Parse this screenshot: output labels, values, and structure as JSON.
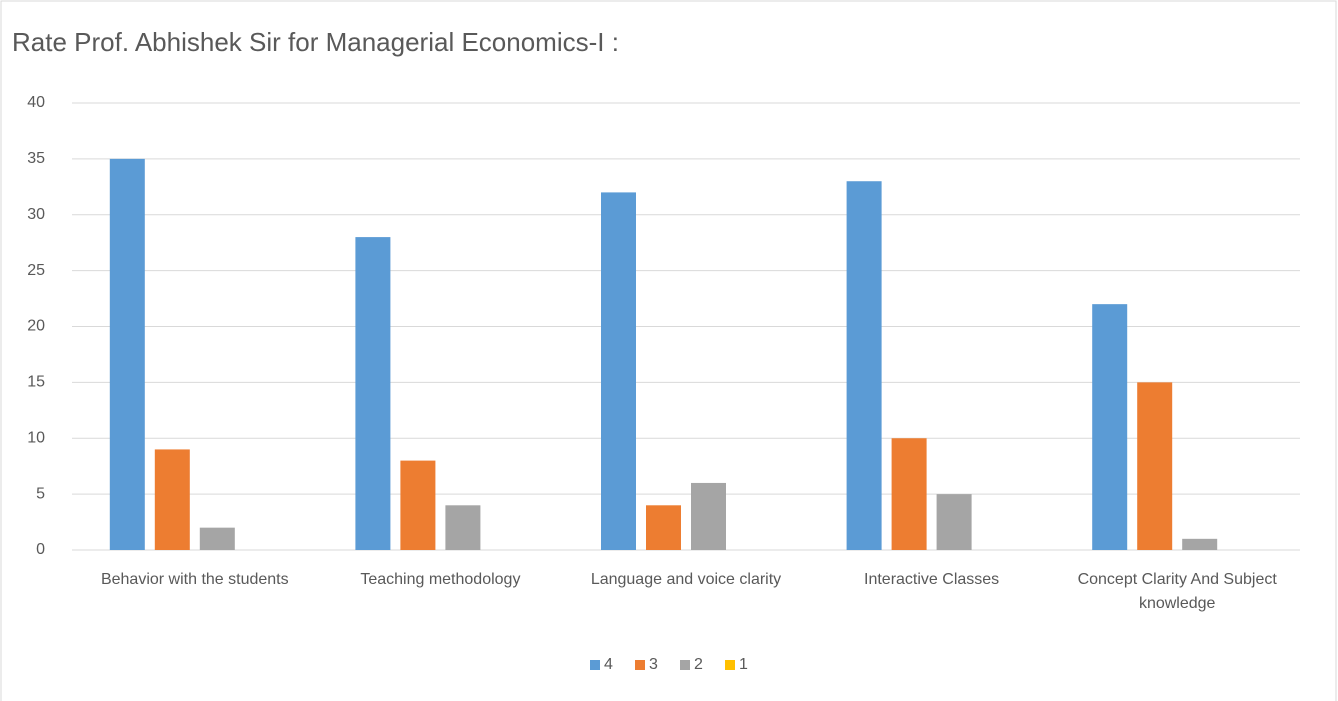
{
  "chart_data": {
    "type": "bar",
    "title": "Rate Prof. Abhishek Sir for Managerial Economics-I :",
    "categories": [
      "Behavior with the students",
      "Teaching methodology",
      "Language and voice clarity",
      "Interactive Classes",
      "Concept Clarity And Subject knowledge"
    ],
    "series": [
      {
        "name": "4",
        "color": "#5b9bd5",
        "values": [
          35,
          28,
          32,
          33,
          22
        ]
      },
      {
        "name": "3",
        "color": "#ed7d31",
        "values": [
          9,
          8,
          4,
          10,
          15
        ]
      },
      {
        "name": "2",
        "color": "#a5a5a5",
        "values": [
          2,
          4,
          6,
          5,
          1
        ]
      },
      {
        "name": "1",
        "color": "#ffc000",
        "values": [
          0,
          0,
          0,
          0,
          0
        ]
      }
    ],
    "ylim": [
      0,
      40
    ],
    "yticks": [
      0,
      5,
      10,
      15,
      20,
      25,
      30,
      35,
      40
    ],
    "grid": true,
    "legend": "bottom"
  }
}
